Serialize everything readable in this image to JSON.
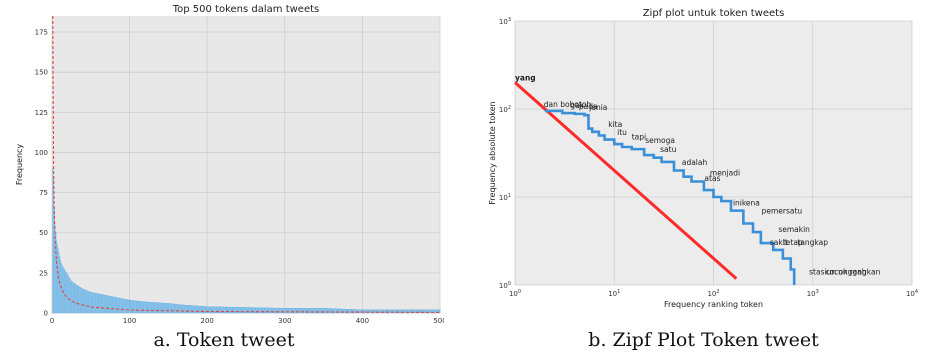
{
  "chart_data": [
    {
      "type": "bar",
      "title": "Top 500 tokens dalam tweets",
      "xlabel": "",
      "ylabel": "Frequency",
      "xlim": [
        0,
        500
      ],
      "ylim": [
        0,
        185
      ],
      "xticks": [
        "0",
        "100",
        "200",
        "300",
        "400",
        "500"
      ],
      "yticks": [
        "0",
        "25",
        "50",
        "75",
        "100",
        "125",
        "150",
        "175"
      ],
      "grid": true,
      "caption": "a. Token tweet",
      "series": [
        {
          "kind": "bars",
          "x": [
            1,
            2,
            3,
            4,
            5,
            6,
            8,
            10,
            12,
            15,
            20,
            25,
            30,
            40,
            50,
            60,
            70,
            80,
            100,
            120,
            150,
            170,
            200,
            250,
            300,
            350,
            400,
            450,
            500
          ],
          "y": [
            90,
            85,
            65,
            55,
            50,
            45,
            40,
            35,
            31,
            28,
            24,
            20,
            18,
            15,
            13,
            12,
            11,
            10,
            8,
            7,
            6,
            5,
            4,
            3.5,
            3,
            3,
            2,
            2,
            2
          ]
        },
        {
          "kind": "zipf-line",
          "style": "dashed",
          "x": [
            1,
            2,
            3,
            4,
            6,
            8,
            10,
            15,
            20,
            30,
            50,
            100,
            200,
            500
          ],
          "y": [
            185,
            92.5,
            61.7,
            46.3,
            30.8,
            23.1,
            18.5,
            12.3,
            9.3,
            6.2,
            3.7,
            1.85,
            0.93,
            0.37
          ]
        }
      ]
    },
    {
      "type": "line",
      "title": "Zipf plot untuk token tweets",
      "xlabel": "Frequency ranking token",
      "ylabel": "Frequency absolute  token",
      "xscale": "log",
      "yscale": "log",
      "xlim": [
        1,
        10000
      ],
      "ylim": [
        1,
        1000
      ],
      "xticks": [
        {
          "base": "10",
          "exp": "0"
        },
        {
          "base": "10",
          "exp": "1"
        },
        {
          "base": "10",
          "exp": "2"
        },
        {
          "base": "10",
          "exp": "3"
        },
        {
          "base": "10",
          "exp": "4"
        }
      ],
      "yticks": [
        {
          "base": "10",
          "exp": "0"
        },
        {
          "base": "10",
          "exp": "1"
        },
        {
          "base": "10",
          "exp": "2"
        },
        {
          "base": "10",
          "exp": "3"
        }
      ],
      "grid": true,
      "caption": "b. Zipf Plot Token tweet",
      "series": [
        {
          "kind": "observed",
          "color": "#3a8fd9",
          "x": [
            2,
            3,
            4,
            5,
            5.5,
            6,
            7,
            8,
            10,
            12,
            15,
            20,
            25,
            30,
            40,
            50,
            60,
            80,
            100,
            120,
            150,
            200,
            250,
            300,
            400,
            500,
            600,
            650
          ],
          "y": [
            95,
            90,
            88,
            85,
            60,
            55,
            50,
            45,
            40,
            37,
            35,
            30,
            28,
            25,
            20,
            17,
            15,
            12,
            10,
            9,
            7,
            5,
            4,
            3,
            2.5,
            2,
            1.5,
            1
          ]
        },
        {
          "kind": "zipf-line",
          "color": "#ff2a2a",
          "x": [
            1,
            170
          ],
          "y": [
            200,
            1.18
          ]
        }
      ],
      "annotations": [
        {
          "text": "yang",
          "x": 1.0,
          "y": 200
        },
        {
          "text": "dan bobotoh",
          "x": 1.95,
          "y": 100
        },
        {
          "text": "gak",
          "x": 3.6,
          "y": 97
        },
        {
          "text": "pada",
          "x": 4.4,
          "y": 95
        },
        {
          "text": "jenia",
          "x": 5.6,
          "y": 93
        },
        {
          "text": "kita",
          "x": 8.7,
          "y": 59
        },
        {
          "text": "itu",
          "x": 10.7,
          "y": 48
        },
        {
          "text": "tapi",
          "x": 15,
          "y": 43
        },
        {
          "text": "semoga",
          "x": 20.5,
          "y": 39
        },
        {
          "text": "satu",
          "x": 29,
          "y": 31
        },
        {
          "text": "adalah",
          "x": 48,
          "y": 22
        },
        {
          "text": "menjadi",
          "x": 92,
          "y": 16.7
        },
        {
          "text": "atas",
          "x": 81,
          "y": 14.5
        },
        {
          "text": "ini",
          "x": 157,
          "y": 7.6
        },
        {
          "text": "kena",
          "x": 193,
          "y": 7.6
        },
        {
          "text": "pemersatu",
          "x": 305,
          "y": 6.2
        },
        {
          "text": "semakin",
          "x": 450,
          "y": 3.8
        },
        {
          "text": "sakit",
          "x": 370,
          "y": 2.7
        },
        {
          "text": "tetap",
          "x": 500,
          "y": 2.7
        },
        {
          "text": "tangkap",
          "x": 700,
          "y": 2.7
        },
        {
          "text": "stasiun",
          "x": 920,
          "y": 1.25
        },
        {
          "text": "cocok",
          "x": 1350,
          "y": 1.25
        },
        {
          "text": "unggah",
          "x": 1800,
          "y": 1.25
        },
        {
          "text": "rangkan",
          "x": 2350,
          "y": 1.25
        }
      ]
    }
  ]
}
